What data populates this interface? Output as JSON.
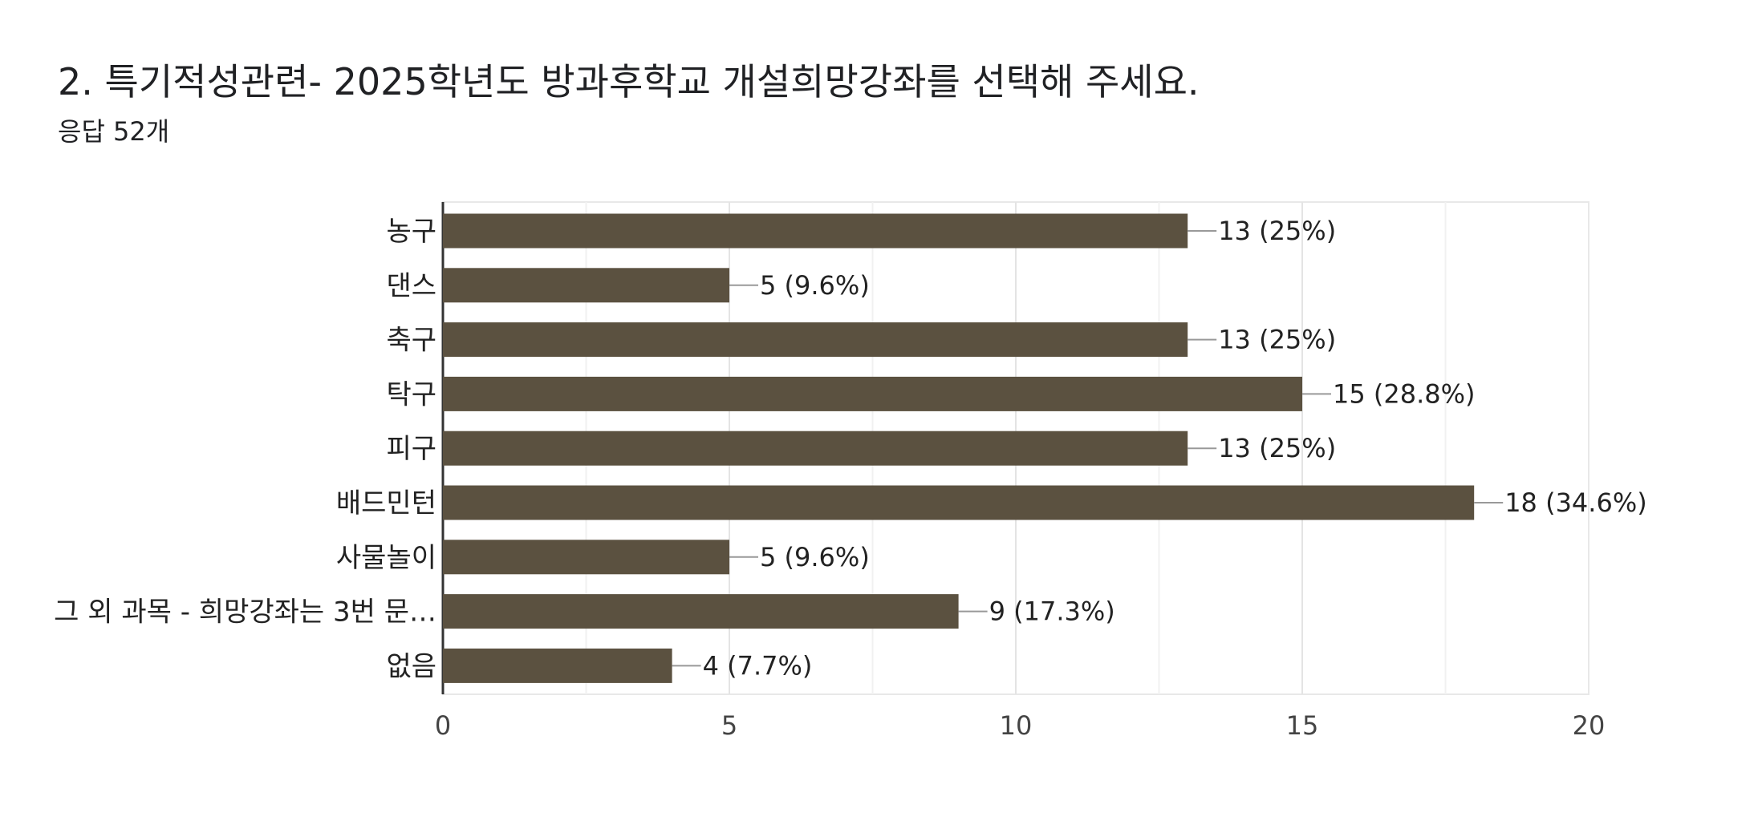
{
  "question": {
    "title": "2. 특기적성관련-  2025학년도 방과후학교 개설희망강좌를 선택해 주세요.",
    "response_count": "응답 52개"
  },
  "colors": {
    "bar": "#5b5140",
    "grid": "#e8e8e8",
    "axis": "#333333",
    "connector": "#999999"
  },
  "chart_data": {
    "type": "bar",
    "orientation": "horizontal",
    "categories": [
      "농구",
      "댄스",
      "축구",
      "탁구",
      "피구",
      "배드민턴",
      "사물놀이",
      "그 외 과목 - 희망강좌는 3번 문…",
      "없음"
    ],
    "values": [
      13,
      5,
      13,
      15,
      13,
      18,
      5,
      9,
      4
    ],
    "data_labels": [
      "13 (25%)",
      "5 (9.6%)",
      "13 (25%)",
      "15 (28.8%)",
      "13 (25%)",
      "18 (34.6%)",
      "5 (9.6%)",
      "9 (17.3%)",
      "4 (7.7%)"
    ],
    "x_ticks": [
      "0",
      "5",
      "10",
      "15",
      "20"
    ],
    "xlim": [
      0,
      20
    ],
    "grid": true,
    "title": "",
    "xlabel": "",
    "ylabel": ""
  }
}
